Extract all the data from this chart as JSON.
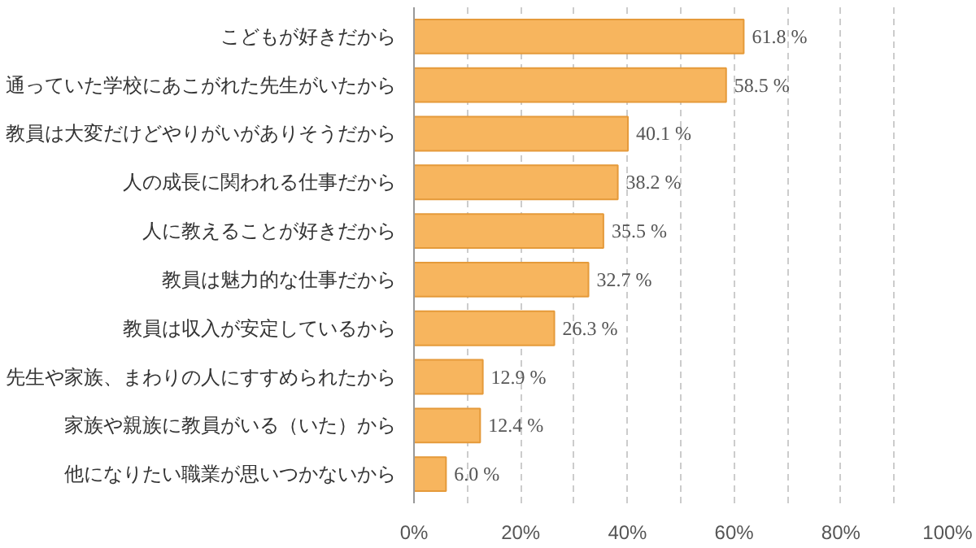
{
  "chart_data": {
    "type": "bar",
    "orientation": "horizontal",
    "categories": [
      "こどもが好きだから",
      "通っていた学校にあこがれた先生がいたから",
      "教員は大変だけどやりがいがありそうだから",
      "人の成長に関われる仕事だから",
      "人に教えることが好きだから",
      "教員は魅力的な仕事だから",
      "教員は収入が安定しているから",
      "先生や家族、まわりの人にすすめられたから",
      "家族や親族に教員がいる（いた）から",
      "他になりたい職業が思いつかないから"
    ],
    "values": [
      61.8,
      58.5,
      40.1,
      38.2,
      35.5,
      32.7,
      26.3,
      12.9,
      12.4,
      6.0
    ],
    "value_labels": [
      "61.8 %",
      "58.5 %",
      "40.1 %",
      "38.2 %",
      "35.5 %",
      "32.7 %",
      "26.3 %",
      "12.9 %",
      "12.4 %",
      "6.0 %"
    ],
    "color": "#f7b55e",
    "xlim": [
      0,
      100
    ],
    "xticks": [
      {
        "value": 0,
        "label": "0%"
      },
      {
        "value": 10,
        "label": null
      },
      {
        "value": 20,
        "label": "20%"
      },
      {
        "value": 30,
        "label": null
      },
      {
        "value": 40,
        "label": "40%"
      },
      {
        "value": 50,
        "label": null
      },
      {
        "value": 60,
        "label": "60%"
      },
      {
        "value": 70,
        "label": null
      },
      {
        "value": 80,
        "label": "80%"
      },
      {
        "value": 90,
        "label": null
      },
      {
        "value": 100,
        "label": "100%"
      }
    ],
    "grid": "x"
  }
}
